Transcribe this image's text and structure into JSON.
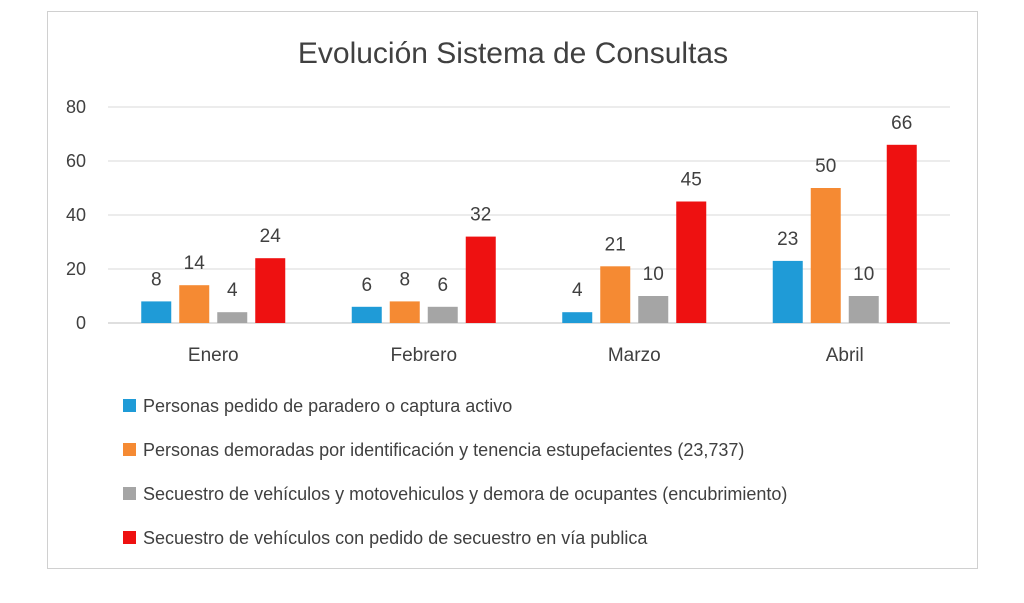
{
  "chart_data": {
    "type": "bar",
    "title": "Evolución Sistema de Consultas",
    "categories": [
      "Enero",
      "Febrero",
      "Marzo",
      "Abril"
    ],
    "ylim": [
      0,
      80
    ],
    "yticks": [
      0,
      20,
      40,
      60,
      80
    ],
    "grid": true,
    "legend_position": "bottom",
    "series": [
      {
        "name": "Personas pedido de paradero o captura activo",
        "color": "#1f9bd7",
        "values": [
          8,
          6,
          4,
          23
        ]
      },
      {
        "name": "Personas demoradas por identificación y tenencia estupefacientes (23,737)",
        "color": "#f58a33",
        "values": [
          14,
          8,
          21,
          50
        ]
      },
      {
        "name": "Secuestro de vehículos y motovehiculos y demora de ocupantes (encubrimiento)",
        "color": "#a5a5a5",
        "values": [
          4,
          6,
          10,
          10
        ]
      },
      {
        "name": "Secuestro de vehículos con pedido de secuestro en vía publica",
        "color": "#ee1111",
        "values": [
          24,
          32,
          45,
          66
        ]
      }
    ]
  }
}
